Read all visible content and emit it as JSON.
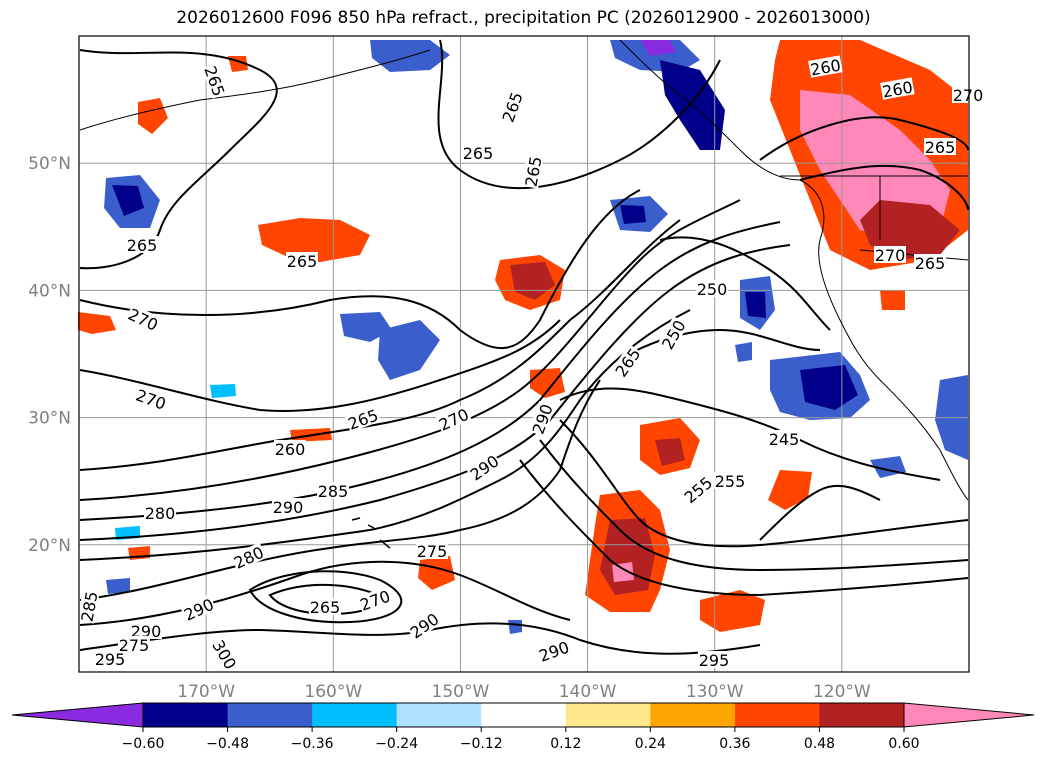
{
  "title": "2026012600 F096 850 hPa refract., precipitation PC (2026012900 - 2026013000)",
  "map": {
    "lat_labels": [
      "50°N",
      "40°N",
      "30°N",
      "20°N"
    ],
    "lon_labels": [
      "170°W",
      "160°W",
      "150°W",
      "140°W",
      "130°W",
      "120°W"
    ],
    "lat_values": [
      50,
      40,
      30,
      20
    ],
    "lon_values": [
      -170,
      -160,
      -150,
      -140,
      -130,
      -120
    ],
    "extent": {
      "lon_min": -180,
      "lon_max": -110,
      "lat_min": 10,
      "lat_max": 60
    },
    "contour_labels": [
      "265",
      "265",
      "265",
      "265",
      "265",
      "265",
      "270",
      "270",
      "270",
      "265",
      "260",
      "280",
      "290",
      "285",
      "290",
      "280",
      "275",
      "265",
      "270",
      "290",
      "285",
      "290",
      "300",
      "295",
      "275",
      "290",
      "265",
      "290",
      "250",
      "245",
      "255",
      "290",
      "295",
      "260",
      "260",
      "265",
      "265",
      "270",
      "270",
      "250",
      "255"
    ],
    "colors": {
      "contour": "#000000",
      "grid": "#999999",
      "tick_label": "#808080",
      "coastline": "#000000"
    }
  },
  "colorbar": {
    "tick_labels": [
      "−0.60",
      "−0.48",
      "−0.36",
      "−0.24",
      "−0.12",
      "0.12",
      "0.24",
      "0.36",
      "0.48",
      "0.60"
    ],
    "tick_values": [
      -0.6,
      -0.48,
      -0.36,
      -0.24,
      -0.12,
      0.12,
      0.24,
      0.36,
      0.48,
      0.6
    ],
    "colors": [
      "#8a2be2",
      "#00008b",
      "#3a5fcd",
      "#00bfff",
      "#b0e2ff",
      "#ffffff",
      "#ffe88c",
      "#ffa500",
      "#ff4500",
      "#b22222",
      "#ff88b8"
    ]
  }
}
